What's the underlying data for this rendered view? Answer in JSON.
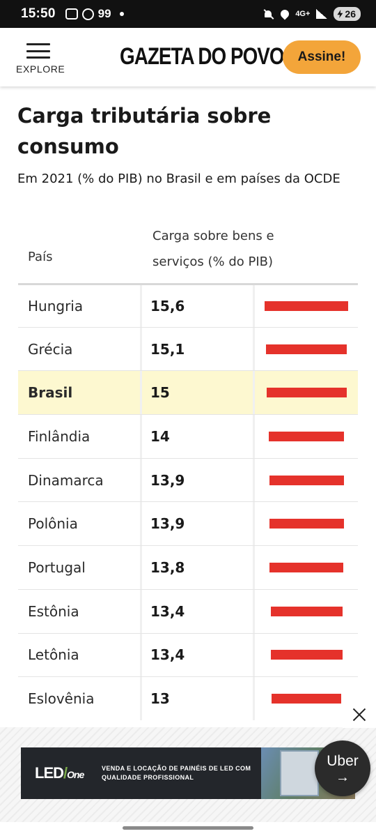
{
  "status_bar": {
    "time": "15:50",
    "notification_count": "99",
    "network": "4G+",
    "battery": "26"
  },
  "header": {
    "menu_label": "EXPLORE",
    "brand": "GAZETA DO POVO",
    "subscribe_label": "Assine!"
  },
  "article": {
    "title": "Carga tributária sobre consumo",
    "subtitle": "Em 2021 (% do PIB) no Brasil e em países da OCDE"
  },
  "table": {
    "col_country": "País",
    "col_value": "Carga sobre bens e serviços (% do PIB)",
    "rows": [
      {
        "country": "Hungria",
        "value": "15,6",
        "v": 15.6
      },
      {
        "country": "Grécia",
        "value": "15,1",
        "v": 15.1
      },
      {
        "country": "Brasil",
        "value": "15",
        "v": 15.0,
        "highlight": true
      },
      {
        "country": "Finlândia",
        "value": "14",
        "v": 14.0
      },
      {
        "country": "Dinamarca",
        "value": "13,9",
        "v": 13.9
      },
      {
        "country": "Polônia",
        "value": "13,9",
        "v": 13.9
      },
      {
        "country": "Portugal",
        "value": "13,8",
        "v": 13.8
      },
      {
        "country": "Estônia",
        "value": "13,4",
        "v": 13.4
      },
      {
        "country": "Letônia",
        "value": "13,4",
        "v": 13.4
      },
      {
        "country": "Eslovênia",
        "value": "13",
        "v": 13.0
      }
    ],
    "bar_color": "#e5322b",
    "highlight_color": "#fdf8d0"
  },
  "ad": {
    "logo": "LED",
    "logo_suffix": "One",
    "text": "VENDA E LOCAÇÃO DE PAINÉIS DE LED COM QUALIDADE PROFISSIONAL",
    "uber_label": "Uber",
    "uber_arrow": "→"
  },
  "colors": {
    "accent": "#f3a53a",
    "bar": "#e5322b"
  }
}
